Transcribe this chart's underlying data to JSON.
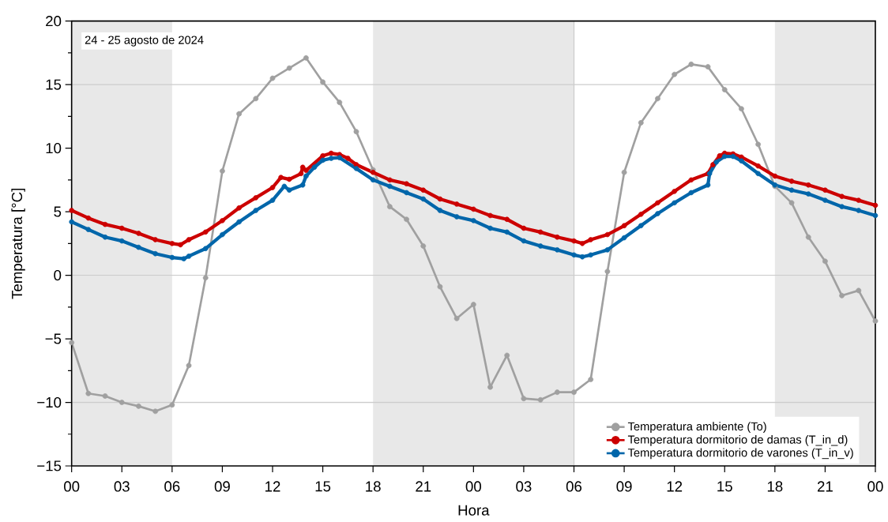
{
  "chart_data": {
    "type": "line",
    "xlabel": "Hora",
    "ylabel": "Temperatura [°C]",
    "annotations": [
      "24 - 25 agosto de 2024"
    ],
    "xlim": [
      0,
      48
    ],
    "ylim": [
      -15,
      20
    ],
    "xticks": [
      {
        "value": 0,
        "label": "00"
      },
      {
        "value": 3,
        "label": "03"
      },
      {
        "value": 6,
        "label": "06"
      },
      {
        "value": 9,
        "label": "09"
      },
      {
        "value": 12,
        "label": "12"
      },
      {
        "value": 15,
        "label": "15"
      },
      {
        "value": 18,
        "label": "18"
      },
      {
        "value": 21,
        "label": "21"
      },
      {
        "value": 24,
        "label": "00"
      },
      {
        "value": 27,
        "label": "03"
      },
      {
        "value": 30,
        "label": "06"
      },
      {
        "value": 33,
        "label": "09"
      },
      {
        "value": 36,
        "label": "12"
      },
      {
        "value": 39,
        "label": "15"
      },
      {
        "value": 42,
        "label": "18"
      },
      {
        "value": 45,
        "label": "21"
      },
      {
        "value": 48,
        "label": "00"
      }
    ],
    "yticks": [
      {
        "value": -15,
        "label": "−15"
      },
      {
        "value": -10,
        "label": "−10"
      },
      {
        "value": -5,
        "label": "−5"
      },
      0,
      5,
      10,
      15,
      20
    ],
    "bands": [
      {
        "axis": "x",
        "from": 0,
        "to": 6,
        "color": "#e8e8e8"
      },
      {
        "axis": "x",
        "from": 18,
        "to": 30,
        "color": "#e8e8e8"
      },
      {
        "axis": "x",
        "from": 42,
        "to": 48,
        "color": "#e8e8e8"
      }
    ],
    "ref_lines": [
      {
        "axis": "y",
        "value": 15,
        "color": "#cccccc"
      },
      {
        "axis": "y",
        "value": 0,
        "color": "#cccccc"
      },
      {
        "axis": "y",
        "value": -10,
        "color": "#cccccc"
      },
      {
        "axis": "x",
        "value": 30,
        "color": "#cccccc"
      }
    ],
    "legend": "bottom right",
    "marker": "circle",
    "line_style": "solid",
    "grid": false,
    "series": [
      {
        "name": "Temperatura ambiente (To)",
        "color": "#a0a0a0",
        "x": [
          0,
          1,
          2,
          3,
          4,
          5,
          6,
          7,
          8,
          9,
          10,
          11,
          12,
          13,
          14,
          15,
          16,
          17,
          18,
          19,
          20,
          21,
          22,
          23,
          24,
          25,
          26,
          27,
          28,
          29,
          30,
          31,
          32,
          33,
          34,
          35,
          36,
          37,
          38,
          39,
          40,
          41,
          42,
          43,
          44,
          45,
          46,
          47,
          48
        ],
        "values": [
          -5.3,
          -9.3,
          -9.5,
          -10.0,
          -10.3,
          -10.7,
          -10.2,
          -7.1,
          -0.2,
          8.2,
          12.7,
          13.9,
          15.5,
          16.3,
          17.1,
          15.2,
          13.6,
          11.3,
          8.3,
          5.4,
          4.4,
          2.3,
          -0.9,
          -3.4,
          -2.3,
          -8.8,
          -6.3,
          -9.7,
          -9.8,
          -9.2,
          -9.2,
          -8.2,
          0.3,
          8.1,
          12.0,
          13.9,
          15.8,
          16.6,
          16.4,
          14.6,
          13.1,
          10.3,
          7.0,
          5.7,
          3.0,
          1.1,
          -1.6,
          -1.2,
          -3.6
        ]
      },
      {
        "name": "Temperatura dormitorio de damas (T_in_d)",
        "color": "#cc0000",
        "x": [
          0,
          1,
          2,
          3,
          4,
          5,
          6,
          6.5,
          7,
          8,
          9,
          10,
          11,
          12,
          12.5,
          13,
          13.7,
          13.8,
          14,
          15,
          15.5,
          16,
          16.5,
          17,
          18,
          19,
          20,
          21,
          22,
          23,
          24,
          25,
          26,
          27,
          28,
          29,
          30,
          30.5,
          31,
          32,
          33,
          34,
          35,
          36,
          37,
          38,
          38.3,
          38.7,
          39,
          39.5,
          40,
          41,
          42,
          43,
          44,
          45,
          46,
          47,
          48
        ],
        "values": [
          5.1,
          4.5,
          4.0,
          3.7,
          3.3,
          2.8,
          2.5,
          2.4,
          2.8,
          3.4,
          4.3,
          5.3,
          6.1,
          6.9,
          7.7,
          7.55,
          8.0,
          8.5,
          8.25,
          9.4,
          9.6,
          9.5,
          9.2,
          8.7,
          8.1,
          7.5,
          7.2,
          6.7,
          6.0,
          5.6,
          5.2,
          4.7,
          4.4,
          3.7,
          3.4,
          3.0,
          2.7,
          2.5,
          2.8,
          3.2,
          3.9,
          4.8,
          5.7,
          6.6,
          7.5,
          8.0,
          8.7,
          9.4,
          9.6,
          9.55,
          9.3,
          8.6,
          7.8,
          7.4,
          7.1,
          6.7,
          6.2,
          5.9,
          5.5
        ]
      },
      {
        "name": "Temperatura dormitorio de varones (T_in_v)",
        "color": "#0066aa",
        "x": [
          0,
          1,
          2,
          3,
          4,
          5,
          6,
          6.7,
          7,
          8,
          9,
          10,
          11,
          12,
          12.7,
          13,
          13.8,
          14,
          14.5,
          15,
          15.5,
          16,
          17,
          18,
          19,
          20,
          21,
          22,
          23,
          24,
          25,
          26,
          27,
          28,
          29,
          30,
          30.5,
          31,
          32,
          33,
          34,
          35,
          36,
          37,
          38,
          38.1,
          38.5,
          39,
          39.5,
          40,
          41,
          42,
          43,
          44,
          45,
          46,
          47,
          48
        ],
        "values": [
          4.2,
          3.6,
          3.0,
          2.7,
          2.2,
          1.7,
          1.4,
          1.3,
          1.5,
          2.1,
          3.2,
          4.2,
          5.1,
          5.9,
          7.0,
          6.7,
          7.1,
          7.8,
          8.5,
          9.05,
          9.2,
          9.25,
          8.4,
          7.5,
          7.0,
          6.5,
          6.0,
          5.1,
          4.6,
          4.3,
          3.7,
          3.4,
          2.7,
          2.3,
          2.0,
          1.6,
          1.45,
          1.6,
          2.0,
          2.95,
          3.9,
          4.85,
          5.7,
          6.5,
          7.1,
          8.0,
          8.9,
          9.35,
          9.35,
          9.0,
          8.0,
          7.1,
          6.7,
          6.4,
          5.9,
          5.4,
          5.1,
          4.7
        ]
      }
    ]
  }
}
